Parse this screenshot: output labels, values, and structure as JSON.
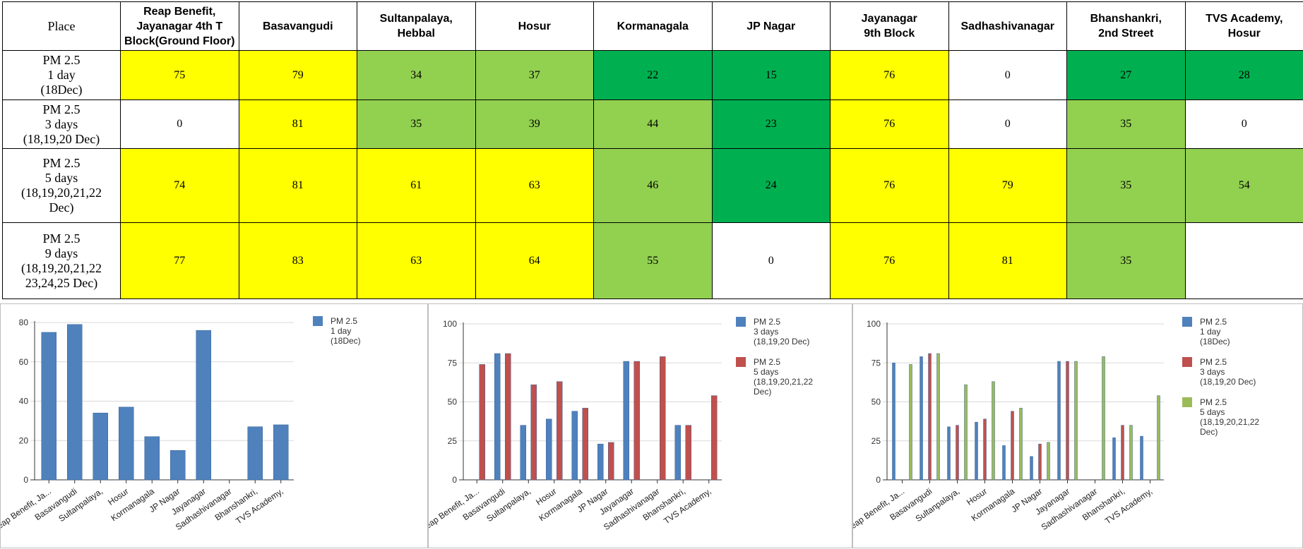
{
  "table": {
    "corner_label": "Place",
    "places": [
      "Reap Benefit,\nJayanagar 4th T\nBlock(Ground Floor)",
      "Basavangudi",
      "Sultanpalaya,\nHebbal",
      "Hosur",
      "Kormanagala",
      "JP Nagar",
      "Jayanagar\n9th Block",
      "Sadhashivanagar",
      "Bhanshankri,\n2nd Street",
      "TVS Academy,\nHosur"
    ],
    "rows": [
      {
        "label": "PM 2.5\n1 day\n(18Dec)",
        "values": [
          "75",
          "79",
          "34",
          "37",
          "22",
          "15",
          "76",
          "0",
          "27",
          "28"
        ],
        "colors": [
          "#ffff00",
          "#ffff00",
          "#92d050",
          "#92d050",
          "#00b050",
          "#00b050",
          "#ffff00",
          "#ffffff",
          "#00b050",
          "#00b050"
        ]
      },
      {
        "label": "PM 2.5\n3 days\n(18,19,20 Dec)",
        "values": [
          "0",
          "81",
          "35",
          "39",
          "44",
          "23",
          "76",
          "0",
          "35",
          "0"
        ],
        "colors": [
          "#ffffff",
          "#ffff00",
          "#92d050",
          "#92d050",
          "#92d050",
          "#00b050",
          "#ffff00",
          "#ffffff",
          "#92d050",
          "#ffffff"
        ]
      },
      {
        "label": "PM 2.5\n5 days\n(18,19,20,21,22\nDec)",
        "values": [
          "74",
          "81",
          "61",
          "63",
          "46",
          "24",
          "76",
          "79",
          "35",
          "54"
        ],
        "colors": [
          "#ffff00",
          "#ffff00",
          "#ffff00",
          "#ffff00",
          "#92d050",
          "#00b050",
          "#ffff00",
          "#ffff00",
          "#92d050",
          "#92d050"
        ]
      },
      {
        "label": "PM 2.5\n9 days\n(18,19,20,21,22\n23,24,25 Dec)",
        "values": [
          "77",
          "83",
          "63",
          "64",
          "55",
          "0",
          "76",
          "81",
          "35",
          ""
        ],
        "colors": [
          "#ffff00",
          "#ffff00",
          "#ffff00",
          "#ffff00",
          "#92d050",
          "#ffffff",
          "#ffff00",
          "#ffff00",
          "#92d050",
          "#ffffff"
        ]
      }
    ]
  },
  "series_colors": {
    "blue": "#4f81bd",
    "red": "#c0504d",
    "green": "#9bbb59"
  },
  "chart_data": [
    {
      "type": "bar",
      "categories": [
        "Reap Benefit, Ja...",
        "Basavangudi",
        "Sultanpalaya,",
        "Hosur",
        "Kormanagala",
        "JP Nagar",
        "Jayanagar",
        "Sadhashivanagar",
        "Bhanshankri,",
        "TVS Academy,"
      ],
      "series": [
        {
          "name": "PM 2.5\n1 day\n(18Dec)",
          "values": [
            75,
            79,
            34,
            37,
            22,
            15,
            76,
            0,
            27,
            28
          ],
          "color": "#4f81bd"
        }
      ],
      "yticks": [
        0,
        20,
        40,
        60,
        80
      ],
      "ylim": [
        0,
        80
      ],
      "legend": "right",
      "grid": true
    },
    {
      "type": "bar",
      "categories": [
        "Reap Benefit, Ja...",
        "Basavangudi",
        "Sultanpalaya,",
        "Hosur",
        "Kormanagala",
        "JP Nagar",
        "Jayanagar",
        "Sadhashivanagar",
        "Bhanshankri,",
        "TVS Academy,"
      ],
      "series": [
        {
          "name": "PM 2.5\n3 days\n(18,19,20 Dec)",
          "values": [
            0,
            81,
            35,
            39,
            44,
            23,
            76,
            0,
            35,
            0
          ],
          "color": "#4f81bd"
        },
        {
          "name": "PM 2.5\n5 days\n(18,19,20,21,22\nDec)",
          "values": [
            74,
            81,
            61,
            63,
            46,
            24,
            76,
            79,
            35,
            54
          ],
          "color": "#c0504d"
        }
      ],
      "yticks": [
        0,
        25,
        50,
        75,
        100
      ],
      "ylim": [
        0,
        100
      ],
      "legend": "right",
      "grid": true
    },
    {
      "type": "bar",
      "categories": [
        "Reap Benefit, Ja...",
        "Basavangudi",
        "Sultanpalaya,",
        "Hosur",
        "Kormanagala",
        "JP Nagar",
        "Jayanagar",
        "Sadhashivanagar",
        "Bhanshankri,",
        "TVS Academy,"
      ],
      "series": [
        {
          "name": "PM 2.5\n1 day\n(18Dec)",
          "values": [
            75,
            79,
            34,
            37,
            22,
            15,
            76,
            0,
            27,
            28
          ],
          "color": "#4f81bd"
        },
        {
          "name": "PM 2.5\n3 days\n(18,19,20 Dec)",
          "values": [
            0,
            81,
            35,
            39,
            44,
            23,
            76,
            0,
            35,
            0
          ],
          "color": "#c0504d"
        },
        {
          "name": "PM 2.5\n5 days\n(18,19,20,21,22\nDec)",
          "values": [
            74,
            81,
            61,
            63,
            46,
            24,
            76,
            79,
            35,
            54
          ],
          "color": "#9bbb59"
        }
      ],
      "yticks": [
        0,
        25,
        50,
        75,
        100
      ],
      "ylim": [
        0,
        100
      ],
      "legend": "right",
      "grid": true
    }
  ]
}
